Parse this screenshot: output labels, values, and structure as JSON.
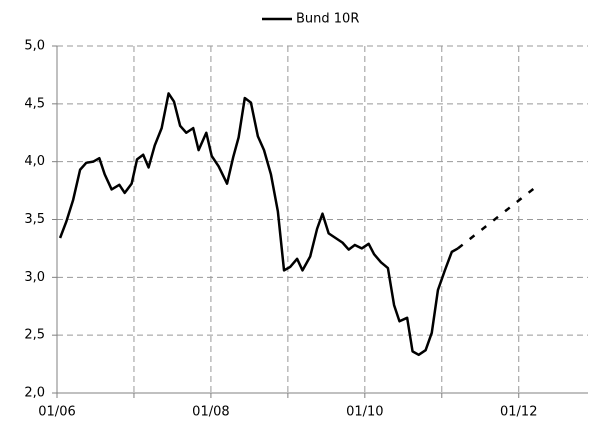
{
  "chart_data": {
    "type": "line",
    "series": [
      {
        "name": "Bund 10R",
        "color": "#000000",
        "dash": false,
        "x": [
          2006.04,
          2006.12,
          2006.21,
          2006.3,
          2006.38,
          2006.47,
          2006.55,
          2006.62,
          2006.71,
          2006.81,
          2006.88,
          2006.97,
          2007.04,
          2007.12,
          2007.19,
          2007.27,
          2007.36,
          2007.45,
          2007.52,
          2007.6,
          2007.68,
          2007.77,
          2007.84,
          2007.94,
          2008.01,
          2008.1,
          2008.21,
          2008.29,
          2008.36,
          2008.44,
          2008.52,
          2008.61,
          2008.69,
          2008.78,
          2008.87,
          2008.95,
          2009.03,
          2009.12,
          2009.19,
          2009.29,
          2009.38,
          2009.45,
          2009.53,
          2009.62,
          2009.71,
          2009.79,
          2009.87,
          2009.96,
          2010.05,
          2010.12,
          2010.21,
          2010.3,
          2010.38,
          2010.45,
          2010.55,
          2010.62,
          2010.7,
          2010.79,
          2010.87,
          2010.95,
          2011.04,
          2011.13,
          2011.21
        ],
        "values": [
          3.34,
          3.48,
          3.67,
          3.93,
          3.99,
          4.0,
          4.03,
          3.89,
          3.76,
          3.8,
          3.73,
          3.81,
          4.02,
          4.06,
          3.95,
          4.14,
          4.29,
          4.59,
          4.52,
          4.31,
          4.25,
          4.29,
          4.1,
          4.25,
          4.05,
          3.96,
          3.81,
          4.04,
          4.21,
          4.55,
          4.51,
          4.22,
          4.1,
          3.89,
          3.57,
          3.06,
          3.09,
          3.16,
          3.06,
          3.18,
          3.42,
          3.55,
          3.38,
          3.34,
          3.3,
          3.24,
          3.28,
          3.25,
          3.29,
          3.2,
          3.13,
          3.08,
          2.76,
          2.62,
          2.65,
          2.36,
          2.33,
          2.37,
          2.52,
          2.89,
          3.06,
          3.22,
          3.25
        ]
      },
      {
        "color": "#000000",
        "dash": true,
        "x": [
          2011.21,
          2012.22
        ],
        "values": [
          3.25,
          3.78
        ]
      }
    ],
    "xlim": [
      2006,
      2012.9
    ],
    "xticks": [
      {
        "value": 2006,
        "label": "01/06"
      },
      {
        "value": 2007,
        "label": null
      },
      {
        "value": 2008,
        "label": "01/08"
      },
      {
        "value": 2009,
        "label": null
      },
      {
        "value": 2010,
        "label": "01/10"
      },
      {
        "value": 2011,
        "label": null
      },
      {
        "value": 2012,
        "label": "01/12"
      }
    ],
    "ylim": [
      2.0,
      5.0
    ],
    "yticks": [
      {
        "value": 2.0,
        "label": "2,0"
      },
      {
        "value": 2.5,
        "label": "2,5"
      },
      {
        "value": 3.0,
        "label": "3,0"
      },
      {
        "value": 3.5,
        "label": "3,5"
      },
      {
        "value": 4.0,
        "label": "4,0"
      },
      {
        "value": 4.5,
        "label": "4,5"
      },
      {
        "value": 5.0,
        "label": "5,0"
      }
    ],
    "grid": true,
    "legend": "top"
  }
}
